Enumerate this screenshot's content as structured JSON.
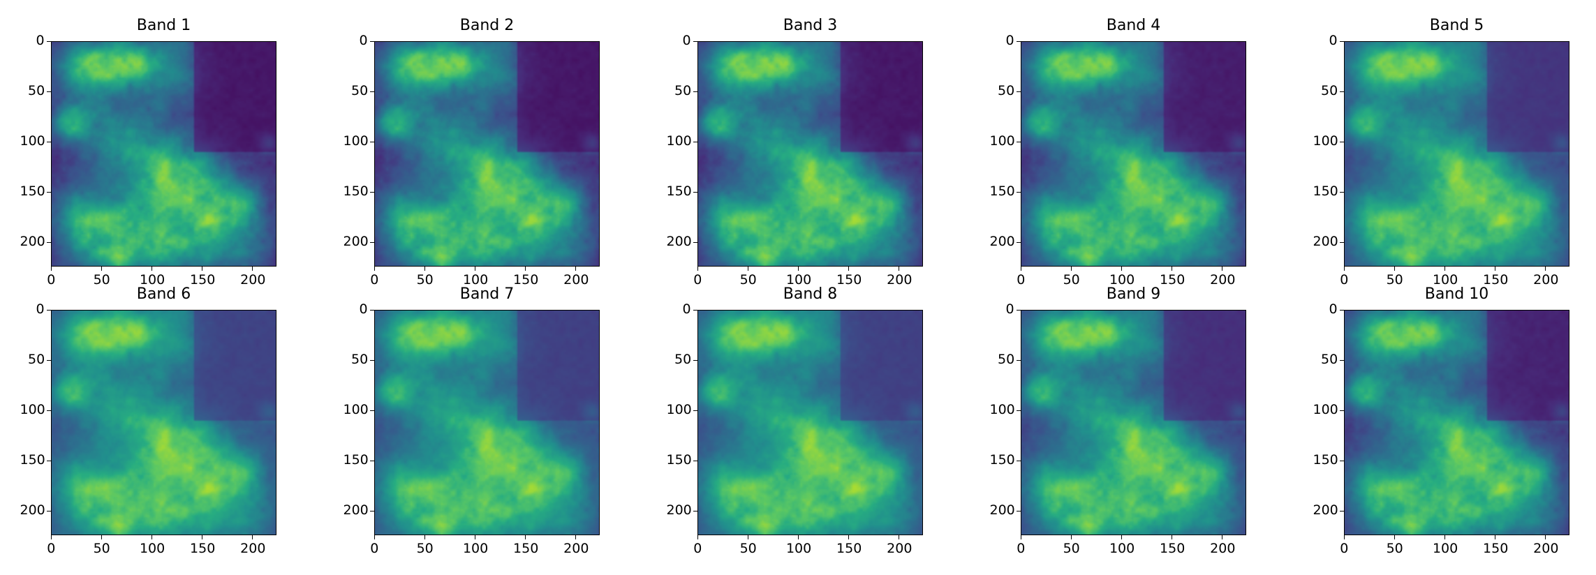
{
  "chart_data": {
    "type": "heatmap",
    "layout": {
      "rows": 2,
      "columns": 5
    },
    "colormap": "viridis",
    "colors": {
      "low": "#440154",
      "mid": "#21918c",
      "high": "#fde725"
    },
    "xlim": [
      0,
      224
    ],
    "ylim": [
      224,
      0
    ],
    "x_ticks": [
      "0",
      "50",
      "100",
      "150",
      "200"
    ],
    "y_ticks": [
      "0",
      "50",
      "100",
      "150",
      "200"
    ],
    "panels": [
      {
        "title": "Band 1",
        "contrast": 1.0,
        "floor": 0.0
      },
      {
        "title": "Band 2",
        "contrast": 1.0,
        "floor": 0.0
      },
      {
        "title": "Band 3",
        "contrast": 1.02,
        "floor": 0.0
      },
      {
        "title": "Band 4",
        "contrast": 0.98,
        "floor": 0.02
      },
      {
        "title": "Band 5",
        "contrast": 0.9,
        "floor": 0.1
      },
      {
        "title": "Band 6",
        "contrast": 0.85,
        "floor": 0.15
      },
      {
        "title": "Band 7",
        "contrast": 0.85,
        "floor": 0.14
      },
      {
        "title": "Band 8",
        "contrast": 0.86,
        "floor": 0.14
      },
      {
        "title": "Band 9",
        "contrast": 0.92,
        "floor": 0.08
      },
      {
        "title": "Band 10",
        "contrast": 0.95,
        "floor": 0.04
      }
    ]
  }
}
